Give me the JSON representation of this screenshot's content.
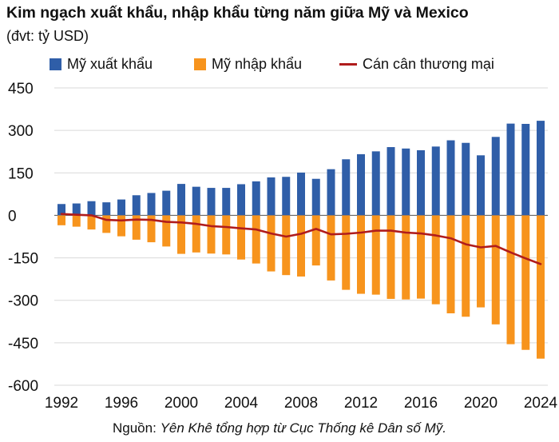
{
  "chart_data": {
    "type": "bar",
    "title": "Kim ngạch xuất khẩu, nhập khẩu từng năm giữa Mỹ và Mexico",
    "subtitle": "(đvt: tỷ USD)",
    "x": [
      1992,
      1993,
      1994,
      1995,
      1996,
      1997,
      1998,
      1999,
      2000,
      2001,
      2002,
      2003,
      2004,
      2005,
      2006,
      2007,
      2008,
      2009,
      2010,
      2011,
      2012,
      2013,
      2014,
      2015,
      2016,
      2017,
      2018,
      2019,
      2020,
      2021,
      2022,
      2023,
      2024
    ],
    "xticks": [
      "1992",
      "1996",
      "2000",
      "2004",
      "2008",
      "2012",
      "2016",
      "2020",
      "2024"
    ],
    "yticks": [
      "450",
      "300",
      "150",
      "0",
      "-150",
      "-300",
      "-450",
      "-600"
    ],
    "ylim": [
      -600,
      450
    ],
    "grid": true,
    "legend_position": "top",
    "series": [
      {
        "name": "Mỹ xuất khẩu",
        "type": "bar",
        "color": "#2f5ea8",
        "values": [
          40,
          42,
          50,
          46,
          56,
          71,
          79,
          87,
          111,
          101,
          97,
          97,
          110,
          120,
          134,
          136,
          151,
          129,
          163,
          198,
          216,
          226,
          241,
          236,
          230,
          243,
          265,
          256,
          212,
          277,
          324,
          323,
          334
        ]
      },
      {
        "name": "Mỹ nhập khẩu",
        "type": "bar",
        "color": "#f7941d",
        "values": [
          -35,
          -40,
          -50,
          -62,
          -74,
          -86,
          -95,
          -110,
          -136,
          -131,
          -135,
          -138,
          -156,
          -170,
          -198,
          -211,
          -216,
          -177,
          -230,
          -263,
          -277,
          -280,
          -295,
          -297,
          -294,
          -314,
          -346,
          -358,
          -325,
          -385,
          -455,
          -475,
          -506
        ]
      },
      {
        "name": "Cán cân thương mại",
        "type": "line",
        "color": "#b01c1c",
        "values": [
          5,
          2,
          0,
          -16,
          -18,
          -15,
          -16,
          -23,
          -25,
          -30,
          -38,
          -41,
          -46,
          -50,
          -64,
          -75,
          -65,
          -48,
          -67,
          -65,
          -61,
          -54,
          -54,
          -61,
          -64,
          -71,
          -81,
          -102,
          -113,
          -108,
          -131,
          -152,
          -172
        ]
      }
    ]
  },
  "source": {
    "label": "Nguồn:",
    "text": "Yên Khê tổng hợp từ Cục Thống kê Dân số Mỹ."
  }
}
